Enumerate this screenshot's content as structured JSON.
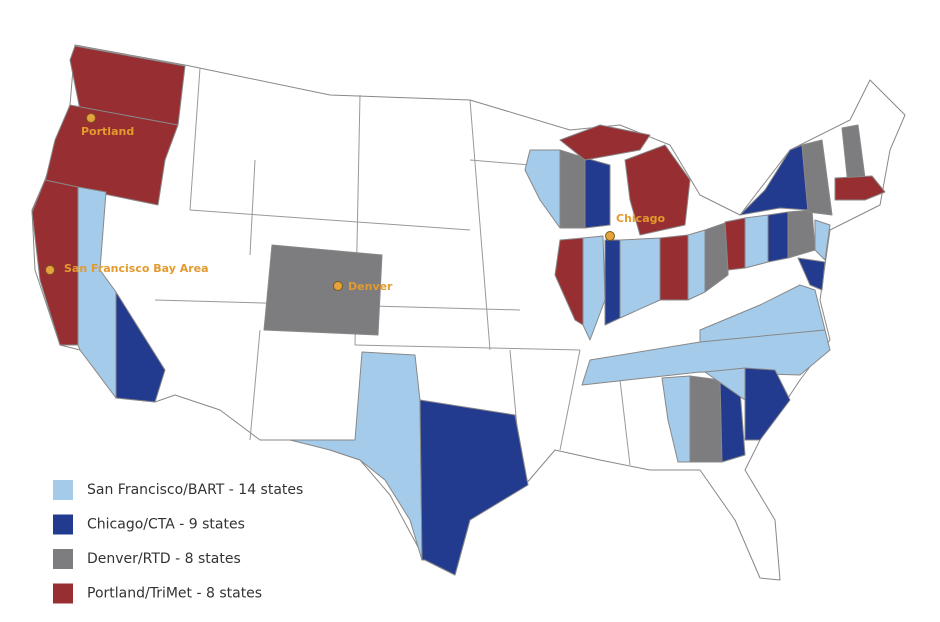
{
  "legend": [
    {
      "label": "San Francisco/BART - 14 states",
      "color": "#a4cbea"
    },
    {
      "label": "Chicago/CTA - 9 states",
      "color": "#233b8e"
    },
    {
      "label": "Denver/RTD - 8 states",
      "color": "#7d7d7f"
    },
    {
      "label": "Portland/TriMet - 8 states",
      "color": "#972f32"
    }
  ],
  "cities": [
    {
      "label": "Portland"
    },
    {
      "label": "San Francisco Bay Area"
    },
    {
      "label": "Denver"
    },
    {
      "label": "Chicago"
    }
  ]
}
